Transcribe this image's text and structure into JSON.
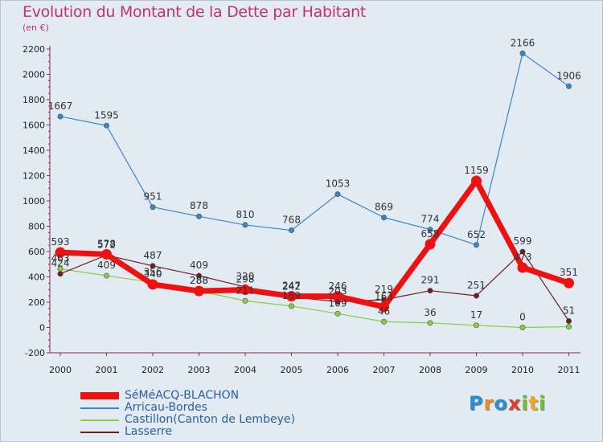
{
  "title": "Evolution du Montant de la Dette par Habitant",
  "subtitle": "(en €)",
  "logo": {
    "letters": [
      {
        "ch": "P",
        "color": "#2a8bd8"
      },
      {
        "ch": "r",
        "color": "#f08a1c"
      },
      {
        "ch": "o",
        "color": "#2a8bd8"
      },
      {
        "ch": "x",
        "color": "#e03a2a"
      },
      {
        "ch": "i",
        "color": "#6cbf2a"
      },
      {
        "ch": "t",
        "color": "#f0a81c"
      },
      {
        "ch": "i",
        "color": "#6cbf2a"
      }
    ]
  },
  "chart_data": {
    "type": "line",
    "x": [
      "2000",
      "2001",
      "2002",
      "2003",
      "2004",
      "2005",
      "2006",
      "2007",
      "2008",
      "2009",
      "2010",
      "2011"
    ],
    "ylim": [
      -200,
      2200
    ],
    "yticks": [
      -200,
      0,
      200,
      400,
      600,
      800,
      1000,
      1200,
      1400,
      1600,
      1800,
      2000,
      2200
    ],
    "grid": false,
    "legend_position": "bottom-left",
    "series": [
      {
        "name": "SéMéACQ-BLACHON",
        "color": "#ee1111",
        "values": [
          593,
          578,
          340,
          288,
          298,
          247,
          246,
          163,
          658,
          1159,
          473,
          351
        ],
        "labels": [
          "593",
          "578",
          "340",
          "288",
          "298",
          "247",
          "246",
          "163",
          "658",
          "1159",
          "473",
          "351"
        ]
      },
      {
        "name": "Arricau-Bordes",
        "color": "#3a85c8",
        "values": [
          1667,
          1595,
          951,
          878,
          810,
          768,
          1053,
          869,
          774,
          652,
          2166,
          1906
        ],
        "labels": [
          "1667",
          "1595",
          "951",
          "878",
          "810",
          "768",
          "1053",
          "869",
          "774",
          "652",
          "2166",
          "1906"
        ]
      },
      {
        "name": "Castillon(Canton de Lembeye)",
        "color": "#88cc44",
        "values": [
          463,
          409,
          356,
          288,
          211,
          169,
          109,
          46,
          36,
          17,
          0,
          6
        ],
        "labels": [
          "463",
          "409",
          "356",
          "288",
          "211",
          "169",
          "109",
          "46",
          "36",
          "17",
          "0",
          ""
        ]
      },
      {
        "name": "Lasserre",
        "color": "#6e1e1e",
        "values": [
          424,
          572,
          487,
          409,
          320,
          242,
          203,
          219,
          291,
          251,
          599,
          51
        ],
        "labels": [
          "424",
          "572",
          "487",
          "409",
          "320",
          "242",
          "203",
          "219",
          "291",
          "251",
          "599",
          "51"
        ]
      }
    ]
  }
}
